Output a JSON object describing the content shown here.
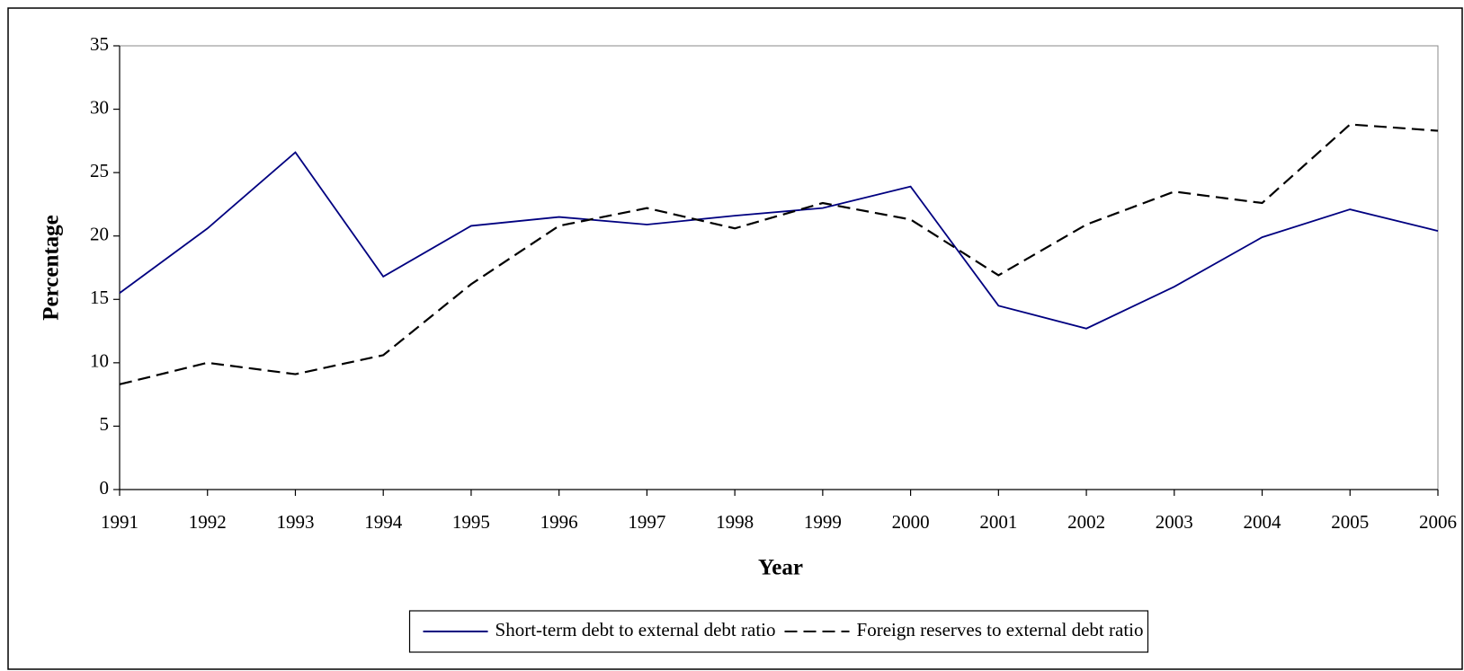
{
  "chart_data": {
    "type": "line",
    "x_label": "Year",
    "y_label": "Percentage",
    "categories": [
      "1991",
      "1992",
      "1993",
      "1994",
      "1995",
      "1996",
      "1997",
      "1998",
      "1999",
      "2000",
      "2001",
      "2002",
      "2003",
      "2004",
      "2005",
      "2006"
    ],
    "series": [
      {
        "name": "Short-term debt to external debt ratio",
        "color": "#000080",
        "dash": "solid",
        "values": [
          15.5,
          20.6,
          26.6,
          16.8,
          20.8,
          21.5,
          20.9,
          21.6,
          22.2,
          23.9,
          14.5,
          12.7,
          16.0,
          19.9,
          22.1,
          20.4
        ]
      },
      {
        "name": "Foreign reserves to external debt ratio",
        "color": "#000000",
        "dash": "dashed",
        "values": [
          8.3,
          10.0,
          9.1,
          10.6,
          16.2,
          20.8,
          22.2,
          20.6,
          22.6,
          21.3,
          16.9,
          20.9,
          23.5,
          22.6,
          28.8,
          28.3
        ]
      }
    ],
    "ylim": [
      0,
      35
    ],
    "yticks": [
      0,
      5,
      10,
      15,
      20,
      25,
      30,
      35
    ],
    "grid": false,
    "legend": "bottom"
  }
}
